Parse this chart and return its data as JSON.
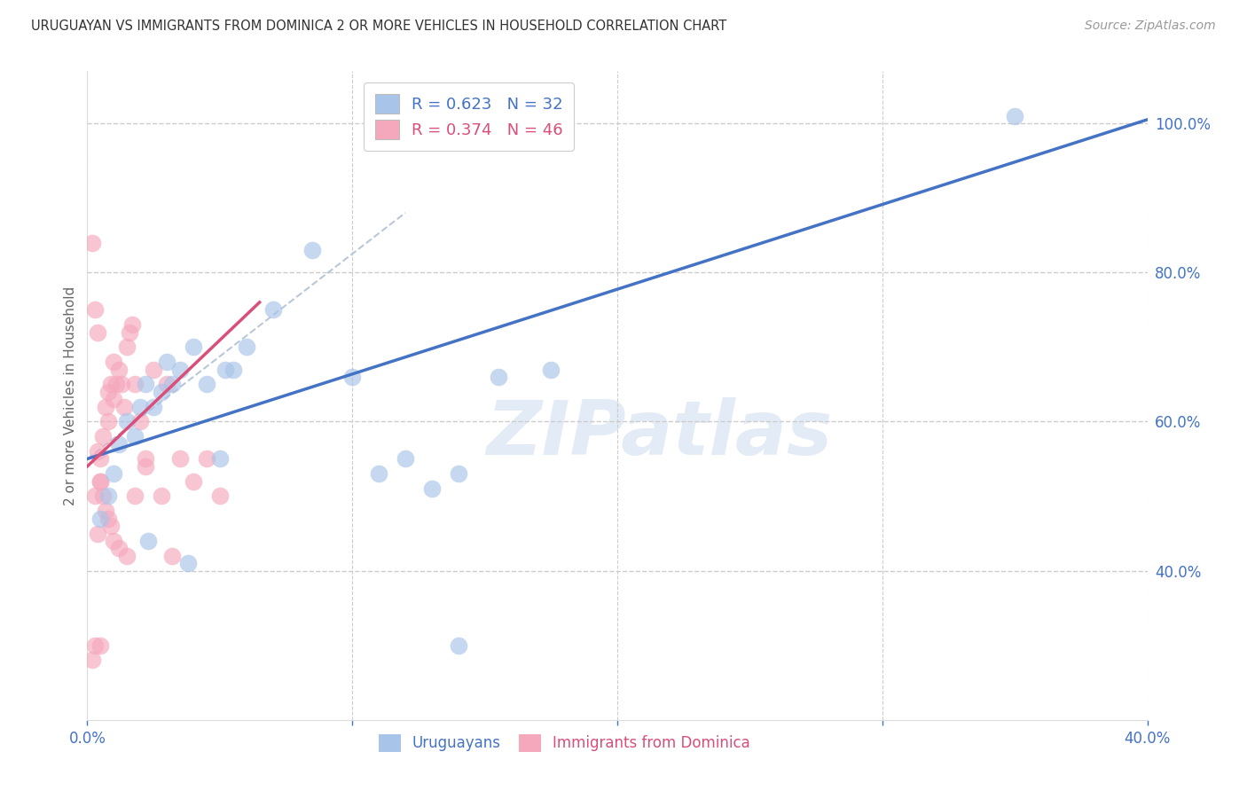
{
  "title": "URUGUAYAN VS IMMIGRANTS FROM DOMINICA 2 OR MORE VEHICLES IN HOUSEHOLD CORRELATION CHART",
  "source": "Source: ZipAtlas.com",
  "ylabel": "2 or more Vehicles in Household",
  "xlabel_ticks": [
    "0.0%",
    "",
    "",
    "",
    "40.0%"
  ],
  "xlabel_vals": [
    0.0,
    10.0,
    20.0,
    30.0,
    40.0
  ],
  "ylabel_ticks": [
    "40.0%",
    "60.0%",
    "80.0%",
    "100.0%"
  ],
  "ylabel_vals": [
    40.0,
    60.0,
    80.0,
    100.0
  ],
  "xmin": 0.0,
  "xmax": 40.0,
  "ymin": 20.0,
  "ymax": 107.0,
  "blue_R": "0.623",
  "blue_N": "32",
  "pink_R": "0.374",
  "pink_N": "46",
  "blue_color": "#a8c4e8",
  "pink_color": "#f5a8bc",
  "blue_line_color": "#4472c4",
  "pink_line_color": "#d94f7a",
  "axis_label_color": "#4472c4",
  "grid_color": "#cccccc",
  "watermark_text": "ZIPatlas",
  "blue_line_x0": 0.0,
  "blue_line_y0": 55.0,
  "blue_line_x1": 40.0,
  "blue_line_y1": 100.5,
  "pink_line_x0": 0.0,
  "pink_line_y0": 54.0,
  "pink_line_x1": 6.5,
  "pink_line_y1": 76.0,
  "dash_line_x0": 0.0,
  "dash_line_y0": 55.0,
  "dash_line_x1": 12.0,
  "dash_line_y1": 88.0,
  "blue_scatter_x": [
    1.2,
    1.5,
    1.8,
    2.0,
    2.2,
    2.5,
    2.8,
    3.0,
    3.2,
    3.5,
    4.0,
    4.5,
    5.0,
    5.5,
    6.0,
    7.0,
    8.5,
    10.0,
    11.0,
    12.0,
    13.0,
    14.0,
    15.5,
    17.5,
    0.5,
    0.8,
    1.0,
    2.3,
    3.8,
    5.2,
    14.0,
    35.0
  ],
  "blue_scatter_y": [
    57,
    60,
    58,
    62,
    65,
    62,
    64,
    68,
    65,
    67,
    70,
    65,
    55,
    67,
    70,
    75,
    83,
    66,
    53,
    55,
    51,
    53,
    66,
    67,
    47,
    50,
    53,
    44,
    41,
    67,
    30,
    101
  ],
  "pink_scatter_x": [
    0.2,
    0.3,
    0.4,
    0.5,
    0.5,
    0.6,
    0.7,
    0.8,
    0.8,
    0.9,
    1.0,
    1.0,
    1.1,
    1.2,
    1.3,
    1.4,
    1.5,
    1.6,
    1.7,
    1.8,
    2.0,
    2.2,
    2.5,
    3.0,
    3.5,
    4.0,
    4.5,
    5.0,
    0.3,
    0.4,
    0.5,
    0.6,
    0.7,
    0.8,
    0.9,
    1.0,
    1.2,
    1.5,
    1.8,
    2.2,
    2.8,
    3.2,
    0.2,
    0.3,
    0.4,
    0.5
  ],
  "pink_scatter_y": [
    84,
    30,
    56,
    52,
    55,
    58,
    62,
    64,
    60,
    65,
    63,
    68,
    65,
    67,
    65,
    62,
    70,
    72,
    73,
    65,
    60,
    54,
    67,
    65,
    55,
    52,
    55,
    50,
    50,
    45,
    52,
    50,
    48,
    47,
    46,
    44,
    43,
    42,
    50,
    55,
    50,
    42,
    28,
    75,
    72,
    30
  ]
}
